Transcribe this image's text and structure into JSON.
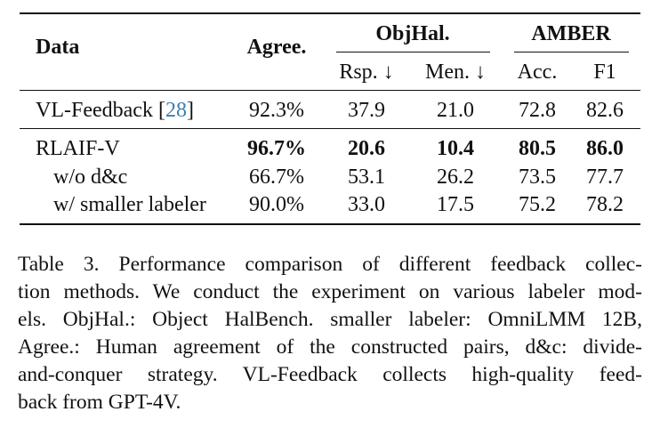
{
  "table": {
    "headers": {
      "data": "Data",
      "agree": "Agree.",
      "objhal": "ObjHal.",
      "amber": "AMBER",
      "rsp": "Rsp. ↓",
      "men": "Men. ↓",
      "acc": "Acc.",
      "f1": "F1"
    },
    "rows": [
      {
        "name": "VL-Feedback",
        "cite": "28",
        "agree": "92.3%",
        "rsp": "37.9",
        "men": "21.0",
        "acc": "72.8",
        "f1": "82.6"
      },
      {
        "name": "RLAIF-V",
        "agree": "96.7%",
        "rsp": "20.6",
        "men": "10.4",
        "acc": "80.5",
        "f1": "86.0"
      },
      {
        "name": "w/o d&c",
        "agree": "66.7%",
        "rsp": "53.1",
        "men": "26.2",
        "acc": "73.5",
        "f1": "77.7"
      },
      {
        "name": "w/ smaller labeler",
        "agree": "90.0%",
        "rsp": "33.0",
        "men": "17.5",
        "acc": "75.2",
        "f1": "78.2"
      }
    ]
  },
  "caption": {
    "lines": [
      "Table 3.  Performance comparison of different feedback collec-",
      "tion methods. We conduct the experiment on various labeler mod-",
      "els. ObjHal.: Object HalBench. smaller labeler: OmniLMM 12B,",
      "Agree.: Human agreement of the constructed pairs, d&c: divide-",
      "and-conquer strategy.  VL-Feedback collects high-quality feed-",
      "back from GPT-4V."
    ]
  }
}
